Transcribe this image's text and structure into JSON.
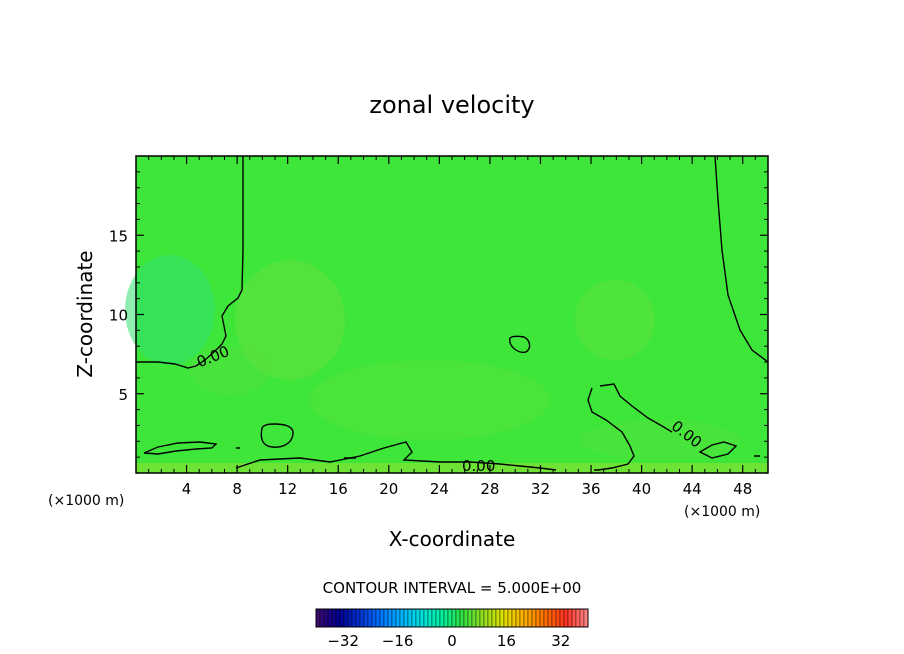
{
  "chart_data": {
    "type": "heatmap",
    "title": "zonal velocity",
    "xlabel": "X-coordinate",
    "ylabel": "Z-coordinate",
    "x_unit": "(×1000 m)",
    "z_unit": "(×1000 m)",
    "xlim": [
      0,
      50
    ],
    "ylim": [
      0,
      20
    ],
    "x_ticks": [
      4,
      8,
      12,
      16,
      20,
      24,
      28,
      32,
      36,
      40,
      44,
      48
    ],
    "y_ticks": [
      5,
      10,
      15
    ],
    "contour_interval_label": "CONTOUR INTERVAL = 5.000E+00",
    "contour_labels": [
      {
        "text": "0.00",
        "x": 6.3,
        "z": 7.6
      },
      {
        "text": "0.00",
        "x": 27.5,
        "z": 0.5
      },
      {
        "text": "0.00",
        "x": 43.5,
        "z": 2.1
      }
    ],
    "colorbar": {
      "min": -40,
      "max": 40,
      "ticks": [
        -32,
        -16,
        0,
        16,
        32
      ],
      "colors": [
        "#3a0a6e",
        "#000090",
        "#0030d0",
        "#0070ff",
        "#00b0ff",
        "#00e0e0",
        "#00f0a0",
        "#30e040",
        "#90e020",
        "#e0e000",
        "#ffb000",
        "#ff7000",
        "#ff3020",
        "#ff8080"
      ]
    },
    "field_color": "#3fe63a"
  }
}
